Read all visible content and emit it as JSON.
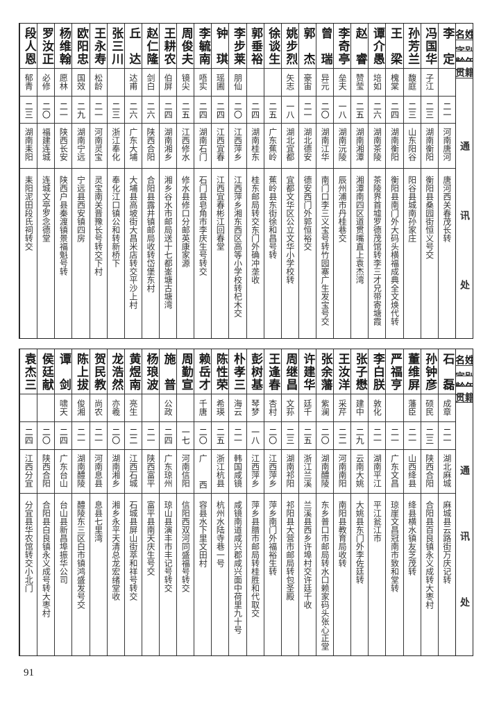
{
  "headers": {
    "name": "姓名",
    "alias": "别字",
    "age": "年龄",
    "origin": "籍贯",
    "address": "通讯处"
  },
  "page_number": "91",
  "top": {
    "rows": [
      {
        "name": "李定",
        "alias": "",
        "age": "二一",
        "origin": "河南唐河",
        "address": "唐河西关春茂长转"
      },
      {
        "name": "冯国华",
        "alias": "子江",
        "age": "二三",
        "origin": "湖南衡阳",
        "address": "衡阳县桑园街恒义号交"
      },
      {
        "name": "孙芳兰",
        "alias": "馥庭",
        "age": "二三",
        "origin": "山东阳谷",
        "address": "阳谷县城南孙家庄"
      },
      {
        "name": "王梁",
        "alias": "槐棠",
        "age": "二四",
        "origin": "湖南衡阳",
        "address": "衡阳县南门外大码头横福成典全文焕代转"
      },
      {
        "name": "谭介愚",
        "alias": "培如",
        "age": "二六",
        "origin": "湖南茶陵",
        "address": "茶陵界首墟罗德茂馆转李三才兄带寄塘霞"
      },
      {
        "name": "赵睿",
        "alias": "赞莹",
        "age": "二五",
        "origin": "湖南湘潭",
        "address": "湘潭南四区道贯嘴直上袁杰湾"
      },
      {
        "name": "李奇亭",
        "alias": "垒夫",
        "age": "一八",
        "origin": "湖南沅陵",
        "address": "辰州浦市丹桂巷交"
      },
      {
        "name": "曾瑞",
        "alias": "异元",
        "age": "二〇",
        "origin": "湖南江华",
        "address": "南门口李三义宝号转竹园寨广生发宝号交"
      },
      {
        "name": "郭杰",
        "alias": "豪宙",
        "age": "二一",
        "origin": "湖北德安",
        "address": "德安西门外郭恒裕交"
      },
      {
        "name": "姚步烈",
        "alias": "矢志",
        "age": "一八",
        "origin": "湖北宜都",
        "address": "宜都文华区公立文华小学校转"
      },
      {
        "name": "徐谈生",
        "alias": "",
        "age": "二五",
        "origin": "广东蕉岭",
        "address": "蕉岭县东街徐和昌号转"
      },
      {
        "name": "郭垂裕",
        "alias": "",
        "age": "二四",
        "origin": "湖南桂东",
        "address": "桂东邮局转交东门外确冲垄收"
      },
      {
        "name": "李步莱",
        "alias": "朋仙",
        "age": "二〇",
        "origin": "江西萍乡",
        "address": "江西萍乡湘东西区高等小学校转杞木交"
      },
      {
        "name": "钟琪",
        "alias": "瑶圃",
        "age": "二四",
        "origin": "江西宜春",
        "address": "江西宜春彬江回春堂"
      },
      {
        "name": "李毓南",
        "alias": "唔实",
        "age": "二四",
        "origin": "湖南石门",
        "address": "石门县皂角市李庆生号转交"
      },
      {
        "name": "周俊夫",
        "alias": "镜尖",
        "age": "二五",
        "origin": "江西修水",
        "address": "修水县修口分邮英康家源"
      },
      {
        "name": "王耕农",
        "alias": "伯屏",
        "age": "二四",
        "origin": "湖南湘乡",
        "address": "湘乡谷水市邮局送十七都崟塘古塘湾"
      },
      {
        "name": "赵仁隆",
        "alias": "剑白",
        "age": "二六",
        "origin": "陕西合阳",
        "address": "合阳县露井镇邮局收转岱堡东村"
      },
      {
        "name": "丘达",
        "alias": "达甫",
        "age": "二六",
        "origin": "广东大埔",
        "address": "大埔县高坡街大昌米店转交平沙上村"
      },
      {
        "name": "张三川",
        "alias": "",
        "age": "二三",
        "origin": "浙江奉化",
        "address": "奉化江口镇公和转新桥下"
      },
      {
        "name": "王永寿",
        "alias": "松龄",
        "age": "二一",
        "origin": "河南灵宝",
        "address": "灵宝南关晋豫长号转交下村"
      },
      {
        "name": "欧阳忠",
        "alias": "国效",
        "age": "二九",
        "origin": "湖南宁远",
        "address": "宁远县西安镇四房"
      },
      {
        "name": "杨维翰",
        "alias": "愿林",
        "age": "二一",
        "origin": "陕西长安",
        "address": "陕西户县秦渡镇景福魁号转"
      },
      {
        "name": "罗汝正",
        "alias": "必修",
        "age": "二〇",
        "origin": "福建连城",
        "address": "连城文亭罗念德堂"
      },
      {
        "name": "段人恩",
        "alias": "郁青",
        "age": "二三",
        "origin": "湖南耒阳",
        "address": "耒阳泥田段氏祠转交"
      }
    ]
  },
  "bottom": {
    "rows": [
      {
        "name": "石磊",
        "alias": "成章",
        "age": "二一",
        "origin": "湖北麻城",
        "address": "麻城县云路街万庆记转"
      },
      {
        "name": "孙钟彦",
        "alias": "硕民",
        "age": "二三",
        "origin": "陕西合阳",
        "address": "合阳县百良镇永义成转大枣村"
      },
      {
        "name": "董维屏",
        "alias": "藩臣",
        "age": "二一",
        "origin": "山西绛县",
        "address": "绛县横水镇友芝茂转"
      },
      {
        "name": "严福亨",
        "alias": "",
        "age": "二一",
        "origin": "广东文昌",
        "address": "琼崖文昌冠南市致和堂转"
      },
      {
        "name": "李白朕",
        "alias": "敦化",
        "age": "二一",
        "origin": "湖南平江",
        "address": "平江瓮江市"
      },
      {
        "name": "张子懋",
        "alias": "建中",
        "age": "二九",
        "origin": "云南大姚",
        "address": "大姚县东门外李佐廷转"
      },
      {
        "name": "王汝洋",
        "alias": "采芹",
        "age": "二二",
        "origin": "河南南阳",
        "address": "南阳县教育局收转"
      },
      {
        "name": "张余藩",
        "alias": "紫澜",
        "age": "二〇",
        "origin": "湖南醴陵",
        "address": "东乡普口市邮局转水口赖家码头张心正堂"
      },
      {
        "name": "许建华",
        "alias": "廷千",
        "age": "二五",
        "origin": "浙江兰溪",
        "address": "兰溪县西乡许埠村交许廷千收"
      },
      {
        "name": "周继昌",
        "alias": "文荪",
        "age": "二三",
        "origin": "湖南祁阳",
        "address": "祁阳县大营市邮局转包圣殿"
      },
      {
        "name": "王逢春",
        "alias": "杏村",
        "age": "二〇",
        "origin": "江西萍乡",
        "address": "萍乡南门外福裕生转"
      },
      {
        "name": "彭树基",
        "alias": "琴梦",
        "age": "一八",
        "origin": "江西萍乡",
        "address": "萍乡县腊市邮局转桂胜和代取交"
      },
      {
        "name": "朴孝三",
        "alias": "海云",
        "age": "二一",
        "origin": "韩国咸镜",
        "address": "咸镜南道咸兴郡咸兴面中荷里九十号"
      },
      {
        "name": "陈性荣",
        "alias": "希瑛",
        "age": "二五",
        "origin": "浙江杭县",
        "address": "杭州水陆寺巷一号"
      },
      {
        "name": "赖岳才",
        "alias": "千唐",
        "age": "二〇",
        "origin": "广西",
        "address": "容县水下里文田村"
      },
      {
        "name": "周勤宣",
        "alias": "",
        "age": "一七",
        "origin": "河南信阳",
        "address": "信阳西双河同盛福号转交"
      },
      {
        "name": "施普",
        "alias": "公政",
        "age": "二四",
        "origin": "广东琼州",
        "address": "琼山县演丰市丰记号转交"
      },
      {
        "name": "杨琅波",
        "alias": "",
        "age": "二一",
        "origin": "陕西富平",
        "address": "富平县南天庆生号交"
      },
      {
        "name": "黄煜南",
        "alias": "亮生",
        "age": "二二",
        "origin": "江西石城",
        "address": "石城县屏山街萃和祥号转交"
      },
      {
        "name": "龙浩然",
        "alias": "亦羲",
        "age": "二〇",
        "origin": "湖南湘乡",
        "address": "湘乡永平天清总龙宏绪堂收"
      },
      {
        "name": "贺民教",
        "alias": "尚农",
        "age": "二一",
        "origin": "河南息县",
        "address": "息县七里湾"
      },
      {
        "name": "陈上拔",
        "alias": "俊湘",
        "age": "二一",
        "origin": "湖南醴陵",
        "address": "醴陵东三区白市镇鸿盛发号交"
      },
      {
        "name": "谭剑",
        "alias": "啸天",
        "age": "二四",
        "origin": "广东台山",
        "address": "台山县新昌埠振华公司"
      },
      {
        "name": "侯廷献",
        "alias": "",
        "age": "二〇",
        "origin": "陕西合阳",
        "address": "合阳县白良镇永义成号转大枣村"
      },
      {
        "name": "袁杰三",
        "alias": "",
        "age": "二四",
        "origin": "江西分宜",
        "address": "分宜县华农馆转交小北门"
      }
    ]
  }
}
